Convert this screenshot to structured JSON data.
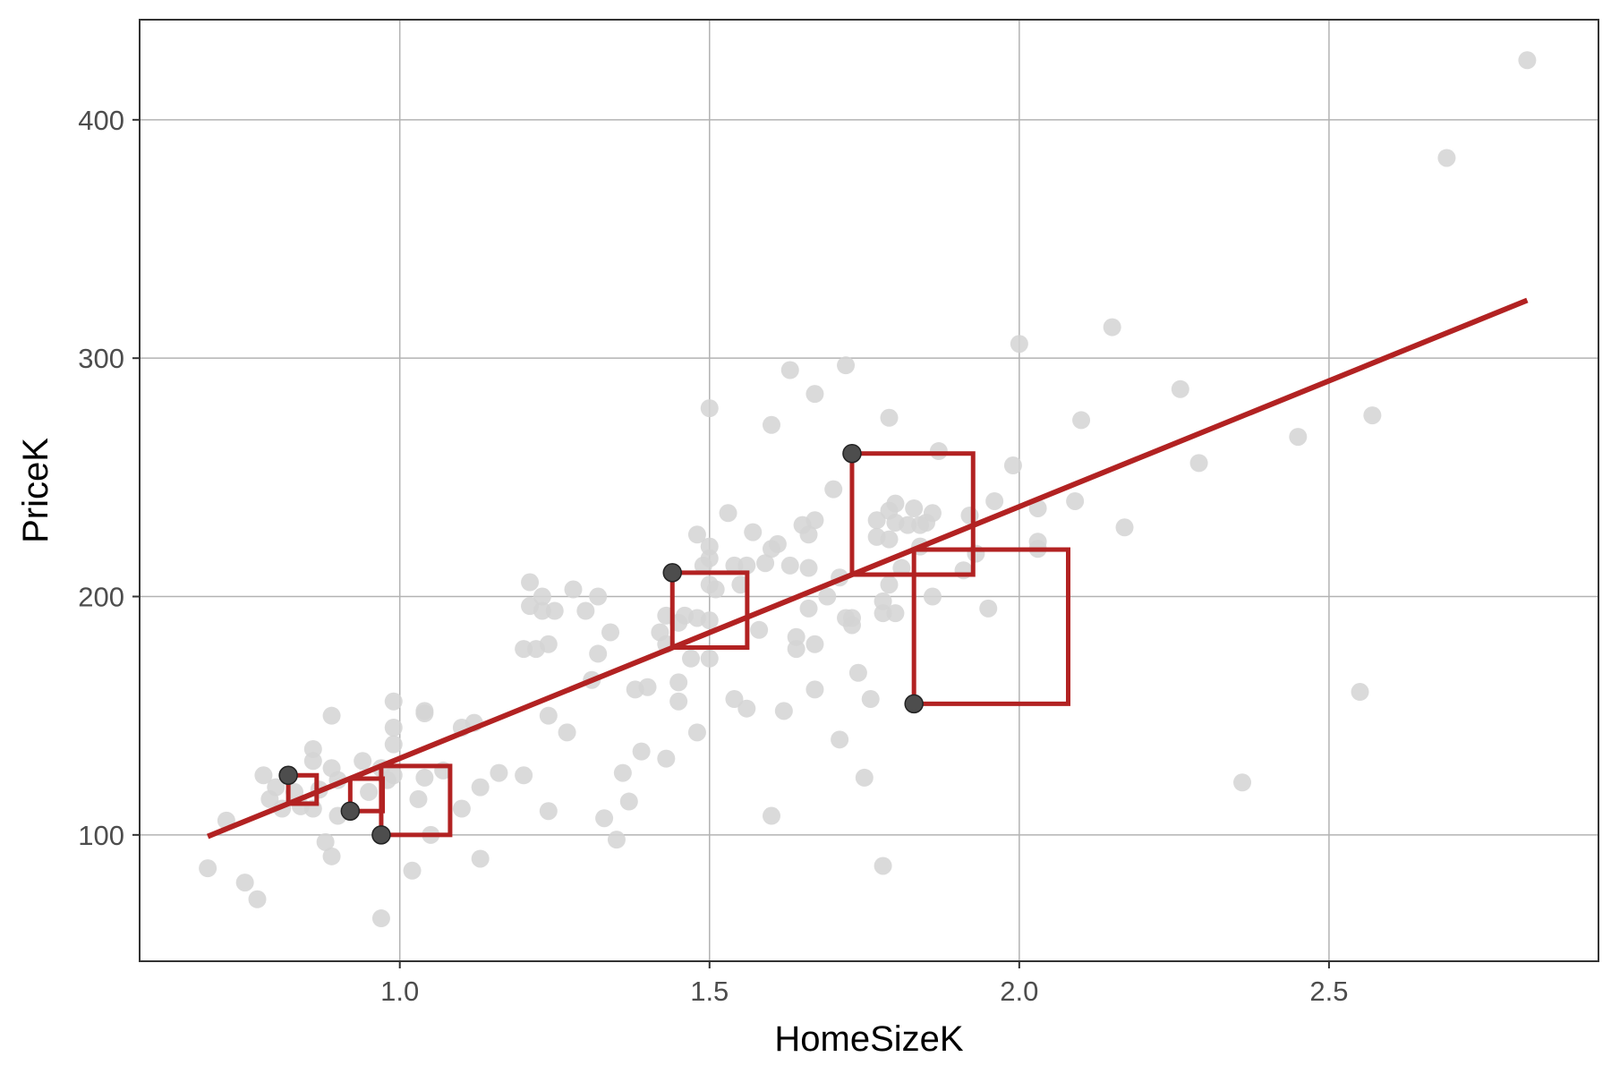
{
  "chart_data": {
    "type": "scatter",
    "title": "",
    "xlabel": "HomeSizeK",
    "ylabel": "PriceK",
    "xlim": [
      0.58,
      2.935
    ],
    "ylim": [
      47,
      442
    ],
    "xticks": [
      1.0,
      1.5,
      2.0,
      2.5
    ],
    "xtick_labels": [
      "1.0",
      "1.5",
      "2.0",
      "2.5"
    ],
    "yticks": [
      100,
      200,
      300,
      400
    ],
    "ytick_labels": [
      "100",
      "200",
      "300",
      "400"
    ],
    "grid": true,
    "legend": "none",
    "colors": {
      "background_points": "#d3d3d3",
      "highlight_points": "#4d4d4d",
      "fit_line": "#b22222",
      "squares": "#b22222",
      "grid": "#b3b3b3",
      "frame": "#333333"
    },
    "fit_line": {
      "intercept": 26.5,
      "slope": 105.6,
      "x": [
        0.69,
        2.82
      ]
    },
    "points": [
      [
        0.69,
        86
      ],
      [
        0.72,
        106
      ],
      [
        0.75,
        80
      ],
      [
        0.77,
        73
      ],
      [
        0.78,
        125
      ],
      [
        0.79,
        115
      ],
      [
        0.8,
        120
      ],
      [
        0.81,
        111
      ],
      [
        0.82,
        125
      ],
      [
        0.83,
        118
      ],
      [
        0.84,
        112
      ],
      [
        0.86,
        136
      ],
      [
        0.86,
        131
      ],
      [
        0.86,
        111
      ],
      [
        0.87,
        119
      ],
      [
        0.88,
        97
      ],
      [
        0.89,
        91
      ],
      [
        0.89,
        128
      ],
      [
        0.89,
        150
      ],
      [
        0.9,
        123
      ],
      [
        0.9,
        108
      ],
      [
        0.92,
        110
      ],
      [
        0.94,
        131
      ],
      [
        0.95,
        118
      ],
      [
        0.97,
        65
      ],
      [
        0.97,
        100
      ],
      [
        0.97,
        128
      ],
      [
        0.98,
        123
      ],
      [
        0.99,
        125
      ],
      [
        0.99,
        138
      ],
      [
        0.99,
        145
      ],
      [
        0.99,
        156
      ],
      [
        1.02,
        85
      ],
      [
        1.03,
        115
      ],
      [
        1.04,
        124
      ],
      [
        1.04,
        151
      ],
      [
        1.04,
        152
      ],
      [
        1.05,
        100
      ],
      [
        1.07,
        127
      ],
      [
        1.1,
        145
      ],
      [
        1.1,
        111
      ],
      [
        1.12,
        147
      ],
      [
        1.13,
        90
      ],
      [
        1.13,
        120
      ],
      [
        1.16,
        126
      ],
      [
        1.2,
        178
      ],
      [
        1.2,
        125
      ],
      [
        1.21,
        196
      ],
      [
        1.21,
        206
      ],
      [
        1.22,
        178
      ],
      [
        1.23,
        194
      ],
      [
        1.23,
        200
      ],
      [
        1.24,
        110
      ],
      [
        1.24,
        180
      ],
      [
        1.24,
        150
      ],
      [
        1.25,
        194
      ],
      [
        1.27,
        143
      ],
      [
        1.28,
        203
      ],
      [
        1.3,
        194
      ],
      [
        1.31,
        165
      ],
      [
        1.32,
        176
      ],
      [
        1.32,
        200
      ],
      [
        1.33,
        107
      ],
      [
        1.34,
        185
      ],
      [
        1.35,
        98
      ],
      [
        1.36,
        126
      ],
      [
        1.37,
        114
      ],
      [
        1.38,
        161
      ],
      [
        1.39,
        135
      ],
      [
        1.4,
        162
      ],
      [
        1.42,
        185
      ],
      [
        1.43,
        132
      ],
      [
        1.43,
        180
      ],
      [
        1.43,
        192
      ],
      [
        1.44,
        210
      ],
      [
        1.45,
        156
      ],
      [
        1.45,
        164
      ],
      [
        1.45,
        189
      ],
      [
        1.46,
        192
      ],
      [
        1.47,
        174
      ],
      [
        1.48,
        191
      ],
      [
        1.48,
        226
      ],
      [
        1.48,
        143
      ],
      [
        1.49,
        213
      ],
      [
        1.5,
        221
      ],
      [
        1.5,
        216
      ],
      [
        1.5,
        279
      ],
      [
        1.5,
        205
      ],
      [
        1.5,
        190
      ],
      [
        1.5,
        174
      ],
      [
        1.51,
        203
      ],
      [
        1.53,
        235
      ],
      [
        1.54,
        157
      ],
      [
        1.54,
        213
      ],
      [
        1.55,
        205
      ],
      [
        1.56,
        213
      ],
      [
        1.56,
        153
      ],
      [
        1.57,
        227
      ],
      [
        1.58,
        186
      ],
      [
        1.59,
        214
      ],
      [
        1.6,
        108
      ],
      [
        1.6,
        272
      ],
      [
        1.6,
        220
      ],
      [
        1.61,
        222
      ],
      [
        1.62,
        152
      ],
      [
        1.63,
        213
      ],
      [
        1.63,
        295
      ],
      [
        1.64,
        183
      ],
      [
        1.64,
        178
      ],
      [
        1.65,
        230
      ],
      [
        1.66,
        195
      ],
      [
        1.66,
        226
      ],
      [
        1.66,
        212
      ],
      [
        1.67,
        161
      ],
      [
        1.67,
        180
      ],
      [
        1.67,
        232
      ],
      [
        1.67,
        285
      ],
      [
        1.69,
        200
      ],
      [
        1.7,
        245
      ],
      [
        1.71,
        140
      ],
      [
        1.71,
        208
      ],
      [
        1.72,
        191
      ],
      [
        1.72,
        297
      ],
      [
        1.73,
        188
      ],
      [
        1.73,
        191
      ],
      [
        1.73,
        260
      ],
      [
        1.74,
        168
      ],
      [
        1.75,
        124
      ],
      [
        1.76,
        157
      ],
      [
        1.77,
        232
      ],
      [
        1.77,
        225
      ],
      [
        1.78,
        87
      ],
      [
        1.78,
        193
      ],
      [
        1.78,
        198
      ],
      [
        1.79,
        205
      ],
      [
        1.79,
        224
      ],
      [
        1.79,
        236
      ],
      [
        1.79,
        275
      ],
      [
        1.8,
        231
      ],
      [
        1.8,
        193
      ],
      [
        1.8,
        239
      ],
      [
        1.81,
        212
      ],
      [
        1.82,
        230
      ],
      [
        1.83,
        155
      ],
      [
        1.83,
        237
      ],
      [
        1.84,
        230
      ],
      [
        1.84,
        221
      ],
      [
        1.85,
        231
      ],
      [
        1.86,
        200
      ],
      [
        1.86,
        235
      ],
      [
        1.87,
        261
      ],
      [
        1.91,
        211
      ],
      [
        1.92,
        234
      ],
      [
        1.93,
        218
      ],
      [
        1.95,
        195
      ],
      [
        1.96,
        240
      ],
      [
        1.99,
        255
      ],
      [
        2.0,
        306
      ],
      [
        2.03,
        237
      ],
      [
        2.03,
        223
      ],
      [
        2.03,
        220
      ],
      [
        2.09,
        240
      ],
      [
        2.1,
        274
      ],
      [
        2.15,
        313
      ],
      [
        2.17,
        229
      ],
      [
        2.26,
        287
      ],
      [
        2.29,
        256
      ],
      [
        2.36,
        122
      ],
      [
        2.45,
        267
      ],
      [
        2.55,
        160
      ],
      [
        2.57,
        276
      ],
      [
        2.69,
        384
      ],
      [
        2.82,
        425
      ]
    ],
    "highlighted_points": [
      [
        0.82,
        125
      ],
      [
        0.92,
        110
      ],
      [
        0.97,
        100
      ],
      [
        1.44,
        210
      ],
      [
        1.73,
        260
      ],
      [
        1.83,
        155
      ]
    ],
    "residual_squares": [
      {
        "x": 0.82,
        "y": 125,
        "fitted": 113.1
      },
      {
        "x": 0.92,
        "y": 110,
        "fitted": 123.6
      },
      {
        "x": 0.97,
        "y": 100,
        "fitted": 128.9
      },
      {
        "x": 1.44,
        "y": 210,
        "fitted": 178.6
      },
      {
        "x": 1.73,
        "y": 260,
        "fitted": 209.2
      },
      {
        "x": 1.83,
        "y": 155,
        "fitted": 219.7
      }
    ]
  }
}
